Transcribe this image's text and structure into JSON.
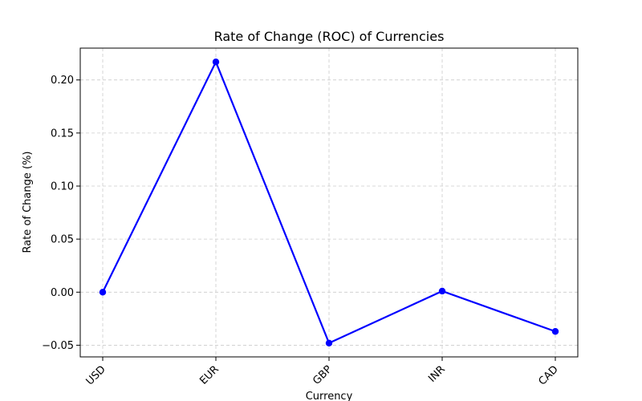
{
  "chart_data": {
    "type": "line",
    "title": "Rate of Change (ROC) of Currencies",
    "xlabel": "Currency",
    "ylabel": "Rate of Change (%)",
    "categories": [
      "USD",
      "EUR",
      "GBP",
      "INR",
      "CAD"
    ],
    "series": [
      {
        "values": [
          0.0,
          0.217,
          -0.048,
          0.001,
          -0.037
        ],
        "color": "#0000ff"
      }
    ],
    "ylim": [
      -0.061,
      0.23
    ],
    "yticks": [
      -0.05,
      0.0,
      0.05,
      0.1,
      0.15,
      0.2
    ],
    "ytick_labels": [
      "−0.05",
      "0.00",
      "0.05",
      "0.10",
      "0.15",
      "0.20"
    ],
    "grid": true,
    "marker": "circle"
  }
}
